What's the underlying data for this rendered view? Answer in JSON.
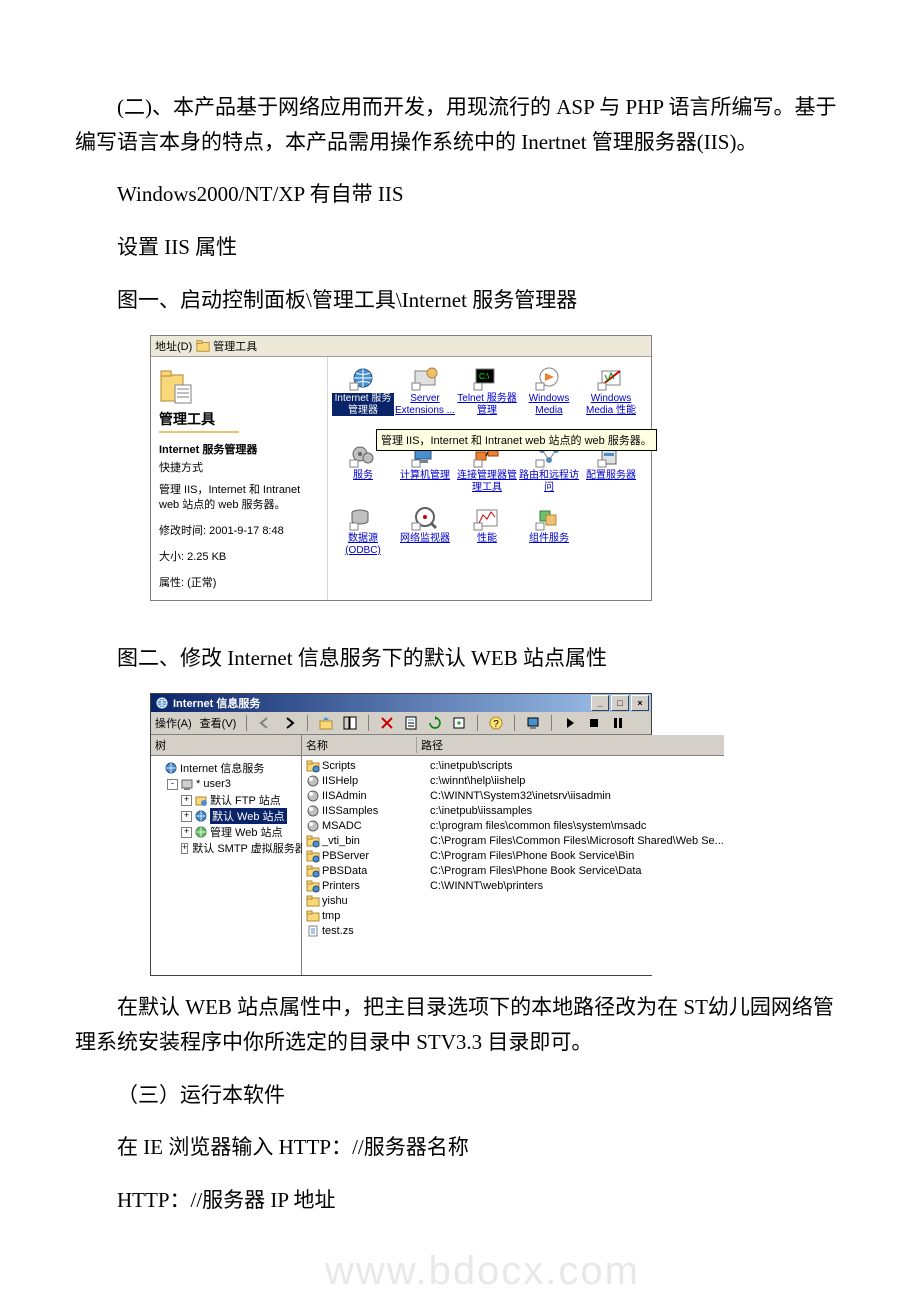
{
  "doc": {
    "para1": "(二)、本产品基于网络应用而开发，用现流行的 ASP 与 PHP 语言所编写。基于编写语言本身的特点，本产品需用操作系统中的 Inertnet 管理服务器(IIS)。",
    "para2": "Windows2000/NT/XP 有自带 IIS",
    "para3": "设置 IIS 属性",
    "para4": "图一、启动控制面板\\管理工具\\Internet 服务管理器",
    "para5": "图二、修改 Internet 信息服务下的默认 WEB 站点属性",
    "para6": "在默认 WEB 站点属性中，把主目录选项下的本地路径改为在 ST幼儿园网络管理系统安装程序中你所选定的目录中 STV3.3 目录即可。",
    "para7": "（三）运行本软件",
    "para8": "在 IE 浏览器输入 HTTP：//服务器名称",
    "para9": " HTTP：//服务器 IP 地址"
  },
  "watermark": "www.bdocx.com",
  "fig1": {
    "address_label": "地址(D)",
    "address_value": "管理工具",
    "left": {
      "title": "管理工具",
      "selected_name": "Internet 服务管理器",
      "selected_type": "快捷方式",
      "description": "管理 IIS，Internet 和 Intranet web 站点的 web 服务器。",
      "modified_label": "修改时间: 2001-9-17 8:48",
      "size_label": "大小: 2.25 KB",
      "attr_label": "属性: (正常)"
    },
    "tooltip": "管理 IIS，Internet 和 Intranet web 站点的 web 服务器。",
    "icons_row1": [
      {
        "label": "Internet 服务管理器",
        "selected": true,
        "icon": "globe"
      },
      {
        "label": "Server Extensions ...",
        "icon": "srv"
      },
      {
        "label": "Telnet 服务器管理",
        "icon": "telnet"
      },
      {
        "label": "Windows Media",
        "icon": "wm"
      },
      {
        "label": "Windows Media 性能",
        "icon": "wmperf"
      }
    ],
    "icons_row2": [
      {
        "label": "服务",
        "icon": "gear"
      },
      {
        "label": "计算机管理",
        "icon": "compmgmt"
      },
      {
        "label": "连接管理器管理工具",
        "icon": "conn"
      },
      {
        "label": "路由和远程访问",
        "icon": "route"
      },
      {
        "label": "配置服务器",
        "icon": "cfg"
      }
    ],
    "icons_row3": [
      {
        "label": "数据源 (ODBC)",
        "icon": "odbc"
      },
      {
        "label": "网络监视器",
        "icon": "netmon"
      },
      {
        "label": "性能",
        "icon": "perf"
      },
      {
        "label": "组件服务",
        "icon": "comp"
      }
    ],
    "colors": {
      "window_bg": "#ece9d8",
      "link": "#0000cc",
      "divider": "#f0c070",
      "tooltip_bg": "#ffffe1",
      "selection_bg": "#0a246a"
    }
  },
  "fig2": {
    "title": "Internet 信息服务",
    "menu": {
      "action": "操作(A)",
      "view": "查看(V)"
    },
    "tree_header": "树",
    "list_headers": {
      "name": "名称",
      "path": "路径"
    },
    "tree": {
      "root": "Internet 信息服务",
      "host": "* user3",
      "nodes": [
        {
          "label": "默认 FTP 站点",
          "exp": "+",
          "icon": "ftp"
        },
        {
          "label": "默认 Web 站点",
          "exp": "+",
          "icon": "web",
          "selected": true
        },
        {
          "label": "管理 Web 站点",
          "exp": "+",
          "icon": "web2"
        },
        {
          "label": "默认 SMTP 虚拟服务器",
          "exp": "+",
          "icon": "smtp"
        }
      ]
    },
    "rows": [
      {
        "name": "Scripts",
        "path": "c:\\inetpub\\scripts",
        "icon": "vfolder"
      },
      {
        "name": "IISHelp",
        "path": "c:\\winnt\\help\\iishelp",
        "icon": "ball"
      },
      {
        "name": "IISAdmin",
        "path": "C:\\WINNT\\System32\\inetsrv\\iisadmin",
        "icon": "ball"
      },
      {
        "name": "IISSamples",
        "path": "c:\\inetpub\\iissamples",
        "icon": "ball"
      },
      {
        "name": "MSADC",
        "path": "c:\\program files\\common files\\system\\msadc",
        "icon": "ball"
      },
      {
        "name": "_vti_bin",
        "path": "C:\\Program Files\\Common Files\\Microsoft Shared\\Web Se...",
        "icon": "vfolder"
      },
      {
        "name": "PBServer",
        "path": "C:\\Program Files\\Phone Book Service\\Bin",
        "icon": "vfolder"
      },
      {
        "name": "PBSData",
        "path": "C:\\Program Files\\Phone Book Service\\Data",
        "icon": "vfolder"
      },
      {
        "name": "Printers",
        "path": "C:\\WINNT\\web\\printers",
        "icon": "vfolder"
      },
      {
        "name": "yishu",
        "path": "",
        "icon": "folder"
      },
      {
        "name": "tmp",
        "path": "",
        "icon": "folder"
      },
      {
        "name": "test.zs",
        "path": "",
        "icon": "file"
      }
    ],
    "colors": {
      "titlebar_from": "#0a246a",
      "titlebar_to": "#a6caf0",
      "chrome_bg": "#d4d0c8",
      "selection_bg": "#0a246a",
      "border": "#808080"
    }
  }
}
